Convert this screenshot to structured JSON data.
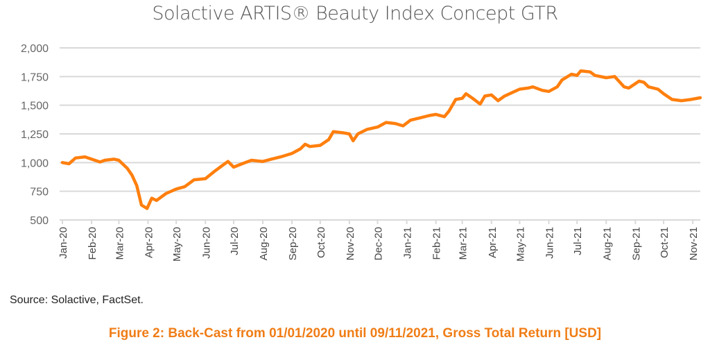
{
  "chart_data": {
    "type": "line",
    "title": "Solactive ARTIS® Beauty Index Concept GTR",
    "xlabel": "",
    "ylabel": "",
    "ylim": [
      500,
      2000
    ],
    "yticks": [
      500,
      750,
      1000,
      1250,
      1500,
      1750,
      2000
    ],
    "ytick_labels": [
      "500",
      "750",
      "1,000",
      "1,250",
      "1,500",
      "1,750",
      "2,000"
    ],
    "xticks": [
      "2020-01-01",
      "2020-02-01",
      "2020-03-01",
      "2020-04-01",
      "2020-05-01",
      "2020-06-01",
      "2020-07-01",
      "2020-08-01",
      "2020-09-01",
      "2020-10-01",
      "2020-11-01",
      "2020-12-01",
      "2021-01-01",
      "2021-02-01",
      "2021-03-01",
      "2021-04-01",
      "2021-05-01",
      "2021-06-01",
      "2021-07-01",
      "2021-08-01",
      "2021-09-01",
      "2021-10-01",
      "2021-11-01"
    ],
    "xtick_labels": [
      "Jan-20",
      "Feb-20",
      "Mar-20",
      "Apr-20",
      "May-20",
      "Jun-20",
      "Jul-20",
      "Aug-20",
      "Sep-20",
      "Oct-20",
      "Nov-20",
      "Dec-20",
      "Jan-21",
      "Feb-21",
      "Mar-21",
      "Apr-21",
      "May-21",
      "Jun-21",
      "Jul-21",
      "Aug-21",
      "Sep-21",
      "Oct-21",
      "Nov-21"
    ],
    "xlim": [
      "2020-01-01",
      "2021-11-09"
    ],
    "grid": "horizontal",
    "color": "#ff7f0e",
    "x": [
      "2020-01-01",
      "2020-01-08",
      "2020-01-15",
      "2020-01-25",
      "2020-02-01",
      "2020-02-10",
      "2020-02-15",
      "2020-02-25",
      "2020-03-01",
      "2020-03-10",
      "2020-03-15",
      "2020-03-20",
      "2020-03-25",
      "2020-03-31",
      "2020-04-05",
      "2020-04-10",
      "2020-04-20",
      "2020-05-01",
      "2020-05-10",
      "2020-05-20",
      "2020-06-01",
      "2020-06-10",
      "2020-06-20",
      "2020-06-25",
      "2020-07-01",
      "2020-07-10",
      "2020-07-20",
      "2020-08-01",
      "2020-08-10",
      "2020-08-20",
      "2020-09-01",
      "2020-09-10",
      "2020-09-15",
      "2020-09-20",
      "2020-10-01",
      "2020-10-10",
      "2020-10-15",
      "2020-10-25",
      "2020-11-01",
      "2020-11-05",
      "2020-11-10",
      "2020-11-20",
      "2020-12-01",
      "2020-12-10",
      "2020-12-20",
      "2020-12-28",
      "2021-01-05",
      "2021-01-15",
      "2021-01-25",
      "2021-02-01",
      "2021-02-10",
      "2021-02-15",
      "2021-02-22",
      "2021-03-01",
      "2021-03-05",
      "2021-03-12",
      "2021-03-20",
      "2021-03-25",
      "2021-04-01",
      "2021-04-08",
      "2021-04-15",
      "2021-05-01",
      "2021-05-10",
      "2021-05-15",
      "2021-05-25",
      "2021-06-01",
      "2021-06-10",
      "2021-06-15",
      "2021-06-25",
      "2021-07-01",
      "2021-07-05",
      "2021-07-15",
      "2021-07-20",
      "2021-08-01",
      "2021-08-10",
      "2021-08-20",
      "2021-08-25",
      "2021-09-05",
      "2021-09-10",
      "2021-09-15",
      "2021-09-25",
      "2021-10-01",
      "2021-10-10",
      "2021-10-20",
      "2021-10-30",
      "2021-11-09"
    ],
    "values": [
      1000,
      990,
      1040,
      1050,
      1030,
      1005,
      1020,
      1030,
      1020,
      950,
      890,
      800,
      630,
      600,
      690,
      670,
      730,
      770,
      790,
      850,
      860,
      920,
      980,
      1010,
      960,
      990,
      1020,
      1010,
      1030,
      1050,
      1080,
      1120,
      1160,
      1140,
      1150,
      1200,
      1270,
      1260,
      1250,
      1190,
      1250,
      1290,
      1310,
      1350,
      1340,
      1320,
      1370,
      1390,
      1410,
      1420,
      1400,
      1450,
      1550,
      1560,
      1600,
      1560,
      1510,
      1580,
      1590,
      1540,
      1580,
      1640,
      1650,
      1660,
      1630,
      1620,
      1660,
      1720,
      1770,
      1760,
      1800,
      1790,
      1760,
      1740,
      1750,
      1660,
      1650,
      1710,
      1700,
      1660,
      1640,
      1600,
      1550,
      1540,
      1550,
      1565
    ]
  },
  "source": "Source: Solactive, FactSet.",
  "caption": "Figure 2: Back-Cast from 01/01/2020 until 09/11/2021, Gross Total Return [USD]"
}
